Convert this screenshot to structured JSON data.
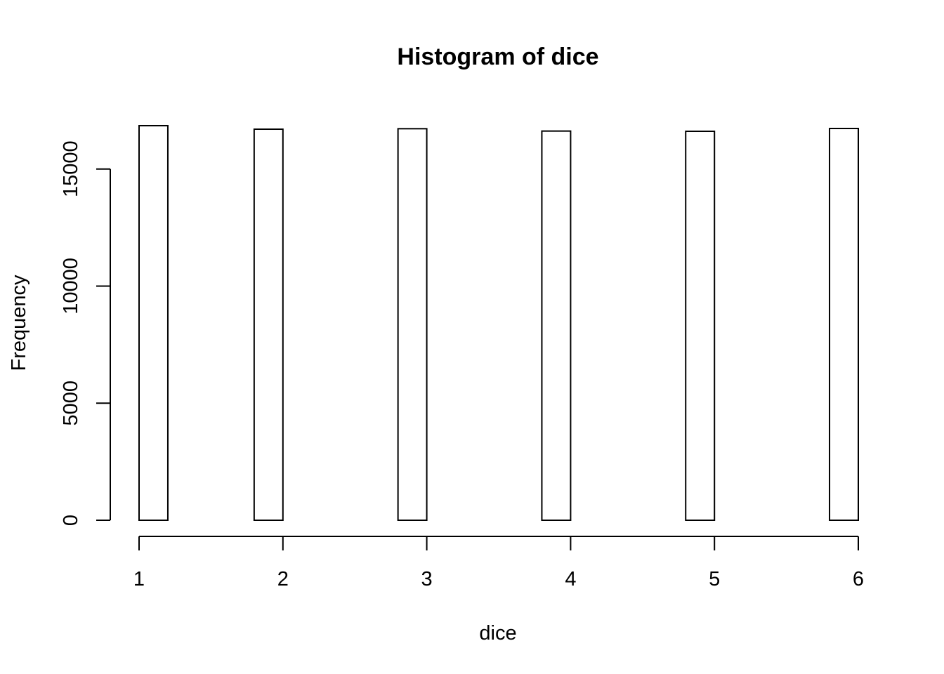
{
  "chart_data": {
    "type": "bar",
    "title": "Histogram of dice",
    "xlabel": "dice",
    "ylabel": "Frequency",
    "bins": [
      {
        "start": 1.0,
        "end": 1.2,
        "count": 16850
      },
      {
        "start": 1.2,
        "end": 1.4,
        "count": 0
      },
      {
        "start": 1.4,
        "end": 1.6,
        "count": 0
      },
      {
        "start": 1.6,
        "end": 1.8,
        "count": 0
      },
      {
        "start": 1.8,
        "end": 2.0,
        "count": 16700
      },
      {
        "start": 2.0,
        "end": 2.2,
        "count": 0
      },
      {
        "start": 2.2,
        "end": 2.4,
        "count": 0
      },
      {
        "start": 2.4,
        "end": 2.6,
        "count": 0
      },
      {
        "start": 2.6,
        "end": 2.8,
        "count": 0
      },
      {
        "start": 2.8,
        "end": 3.0,
        "count": 16720
      },
      {
        "start": 3.0,
        "end": 3.2,
        "count": 0
      },
      {
        "start": 3.2,
        "end": 3.4,
        "count": 0
      },
      {
        "start": 3.4,
        "end": 3.6,
        "count": 0
      },
      {
        "start": 3.6,
        "end": 3.8,
        "count": 0
      },
      {
        "start": 3.8,
        "end": 4.0,
        "count": 16620
      },
      {
        "start": 4.0,
        "end": 4.2,
        "count": 0
      },
      {
        "start": 4.2,
        "end": 4.4,
        "count": 0
      },
      {
        "start": 4.4,
        "end": 4.6,
        "count": 0
      },
      {
        "start": 4.6,
        "end": 4.8,
        "count": 0
      },
      {
        "start": 4.8,
        "end": 5.0,
        "count": 16610
      },
      {
        "start": 5.0,
        "end": 5.2,
        "count": 0
      },
      {
        "start": 5.2,
        "end": 5.4,
        "count": 0
      },
      {
        "start": 5.4,
        "end": 5.6,
        "count": 0
      },
      {
        "start": 5.6,
        "end": 5.8,
        "count": 0
      },
      {
        "start": 5.8,
        "end": 6.0,
        "count": 16730
      }
    ],
    "xlim": [
      1,
      6
    ],
    "ylim": [
      0,
      16850
    ],
    "x_ticks": [
      1,
      2,
      3,
      4,
      5,
      6
    ],
    "y_ticks": [
      0,
      5000,
      10000,
      15000
    ],
    "grid": false
  }
}
